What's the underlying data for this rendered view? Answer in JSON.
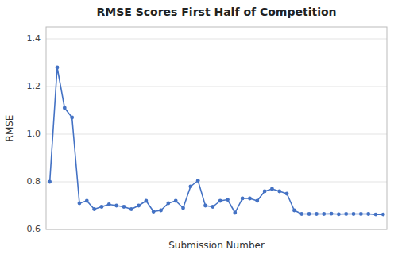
{
  "chart_data": {
    "type": "line",
    "title": "RMSE Scores First Half of Competition",
    "xlabel": "Submission Number",
    "ylabel": "RMSE",
    "values": [
      0.8,
      1.28,
      1.11,
      1.07,
      0.71,
      0.72,
      0.685,
      0.695,
      0.705,
      0.7,
      0.695,
      0.685,
      0.7,
      0.72,
      0.675,
      0.68,
      0.71,
      0.72,
      0.69,
      0.78,
      0.805,
      0.7,
      0.695,
      0.72,
      0.725,
      0.67,
      0.73,
      0.73,
      0.72,
      0.76,
      0.77,
      0.76,
      0.75,
      0.68,
      0.665,
      0.665,
      0.665,
      0.665,
      0.666,
      0.664,
      0.665,
      0.665,
      0.665,
      0.665,
      0.663,
      0.663
    ],
    "color": "#4472c4",
    "marker": "circle",
    "ylim": [
      0.6,
      1.45
    ],
    "yticks": [
      0.6,
      0.8,
      {
        "value": 1.0,
        "label": "1.0"
      },
      1.2,
      1.4
    ],
    "grid": true,
    "tick_labels": "y"
  }
}
